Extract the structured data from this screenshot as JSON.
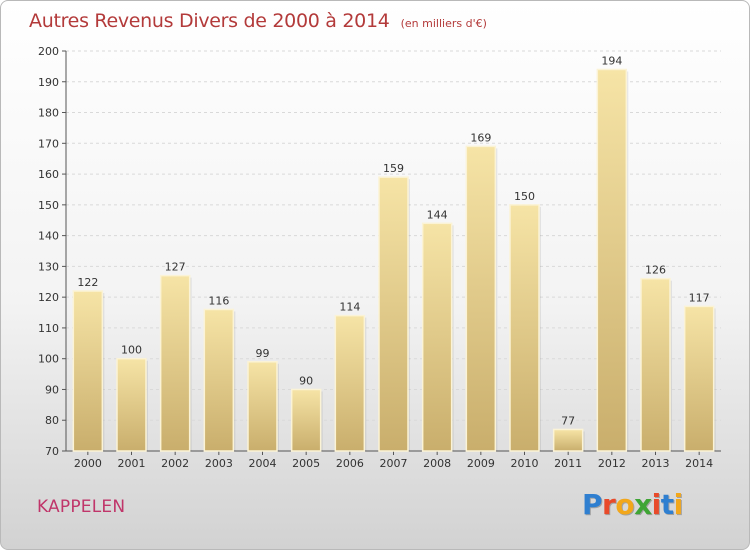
{
  "header": {
    "title": "Autres Revenus Divers de 2000 à 2014",
    "subtitle": "(en milliers d'€)"
  },
  "footer": {
    "place": "KAPPELEN",
    "logo_text": "Proxiti",
    "logo_colors": [
      "#2f7fd0",
      "#e84a2a",
      "#f2a71b",
      "#3fa535",
      "#e84a2a",
      "#2f7fd0",
      "#f2a71b"
    ]
  },
  "chart_data": {
    "type": "bar",
    "categories": [
      "2000",
      "2001",
      "2002",
      "2003",
      "2004",
      "2005",
      "2006",
      "2007",
      "2008",
      "2009",
      "2010",
      "2011",
      "2012",
      "2013",
      "2014"
    ],
    "values": [
      122,
      100,
      127,
      116,
      99,
      90,
      114,
      159,
      144,
      169,
      150,
      77,
      194,
      126,
      117
    ],
    "ylim": [
      70,
      200
    ],
    "yticks": [
      70,
      80,
      90,
      100,
      110,
      120,
      130,
      140,
      150,
      160,
      170,
      180,
      190,
      200
    ],
    "grid": true,
    "bar_color_top": "#f6e4a6",
    "bar_color_bottom": "#c9ae6c"
  }
}
